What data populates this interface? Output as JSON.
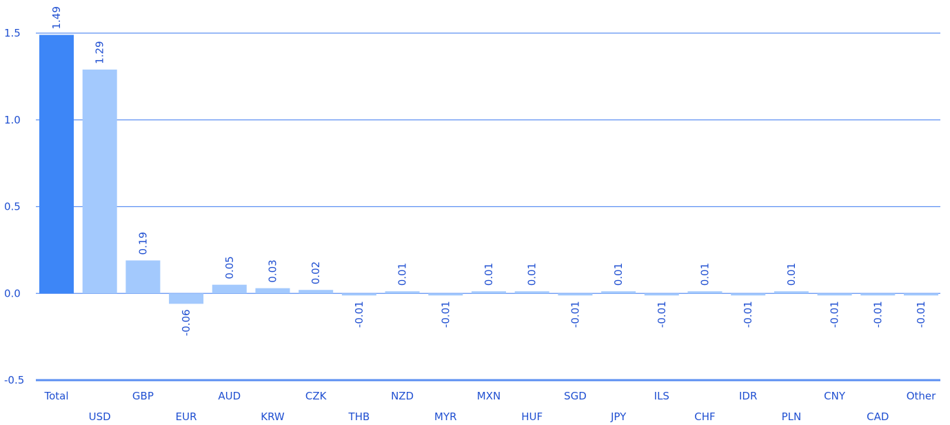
{
  "chart_data": {
    "type": "bar",
    "categories": [
      "Total",
      "USD",
      "GBP",
      "EUR",
      "AUD",
      "KRW",
      "CZK",
      "THB",
      "NZD",
      "MYR",
      "MXN",
      "HUF",
      "SGD",
      "JPY",
      "ILS",
      "CHF",
      "IDR",
      "PLN",
      "CNY",
      "CAD",
      "Other"
    ],
    "values": [
      1.49,
      1.29,
      0.19,
      -0.06,
      0.05,
      0.03,
      0.02,
      -0.01,
      0.01,
      -0.01,
      0.01,
      0.01,
      -0.01,
      0.01,
      -0.01,
      0.01,
      -0.01,
      0.01,
      -0.01,
      -0.01,
      -0.01
    ],
    "data_labels": [
      "1.49",
      "1.29",
      "0.19",
      "-0.06",
      "0.05",
      "0.03",
      "0.02",
      "-0.01",
      "0.01",
      "-0.01",
      "0.01",
      "0.01",
      "-0.01",
      "0.01",
      "-0.01",
      "0.01",
      "-0.01",
      "0.01",
      "-0.01",
      "-0.01",
      "-0.01"
    ],
    "y_ticks": [
      -0.5,
      0.0,
      0.5,
      1.0,
      1.5
    ],
    "y_tick_labels": [
      "-0.5",
      "0.0",
      "0.5",
      "1.0",
      "1.5"
    ],
    "ylim": [
      -0.5,
      1.5
    ],
    "grid": true,
    "title": "",
    "xlabel": "",
    "ylabel": "",
    "colors": {
      "highlight_bar": "#3d86f7",
      "bar": "#a3c9fd",
      "text": "#1f4fd1",
      "grid": "#5b8ff2"
    }
  }
}
